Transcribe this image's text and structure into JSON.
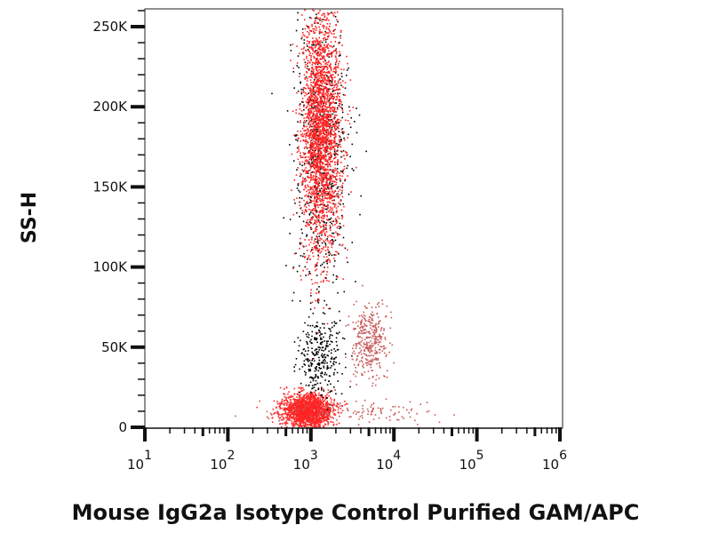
{
  "chart_data": {
    "type": "scatter",
    "title": "",
    "xlabel": "Mouse IgG2a Isotype Control Purified GAM/APC",
    "ylabel": "SS-H",
    "xscale": "log",
    "xlim": [
      10,
      1000000
    ],
    "ylim": [
      0,
      262144
    ],
    "x_ticks": [
      {
        "base": "10",
        "exp": "1",
        "value": 10
      },
      {
        "base": "10",
        "exp": "2",
        "value": 100
      },
      {
        "base": "10",
        "exp": "3",
        "value": 1000
      },
      {
        "base": "10",
        "exp": "4",
        "value": 10000
      },
      {
        "base": "10",
        "exp": "5",
        "value": 100000
      },
      {
        "base": "10",
        "exp": "6",
        "value": 1000000
      }
    ],
    "y_ticks": [
      {
        "label": "0",
        "value": 0
      },
      {
        "label": "50K",
        "value": 50000
      },
      {
        "label": "100K",
        "value": 100000
      },
      {
        "label": "150K",
        "value": 150000
      },
      {
        "label": "200K",
        "value": 200000
      },
      {
        "label": "250K",
        "value": 250000
      }
    ],
    "grid": false,
    "colors": {
      "red": "#ff2424",
      "black": "#000000",
      "pink": "#c85a5a"
    },
    "populations": [
      {
        "color": "red",
        "x_center": 1300,
        "x_log_sd": 0.12,
        "y_center": 185000,
        "y_sd": 38000,
        "count": 2600
      },
      {
        "color": "black",
        "x_center": 1300,
        "x_log_sd": 0.17,
        "y_center": 175000,
        "y_sd": 48000,
        "count": 700
      },
      {
        "color": "red",
        "x_center": 900,
        "x_log_sd": 0.15,
        "y_center": 11000,
        "y_sd": 5000,
        "count": 1800
      },
      {
        "color": "black",
        "x_center": 1250,
        "x_log_sd": 0.12,
        "y_center": 45000,
        "y_sd": 12000,
        "count": 300
      },
      {
        "color": "pink",
        "x_center": 5000,
        "x_log_sd": 0.12,
        "y_center": 55000,
        "y_sd": 11000,
        "count": 350
      },
      {
        "color": "pink",
        "x_center": 3000,
        "x_log_sd": 0.5,
        "y_center": 10000,
        "y_sd": 4000,
        "count": 150
      }
    ]
  }
}
